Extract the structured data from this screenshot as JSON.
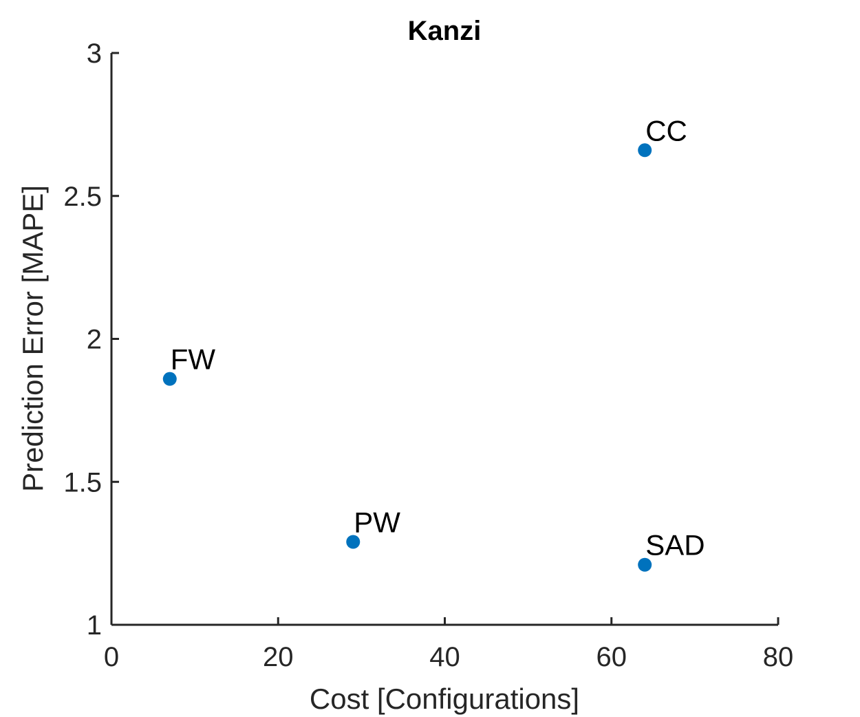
{
  "chart_data": {
    "type": "scatter",
    "title": "Kanzi",
    "xlabel": "Cost [Configurations]",
    "ylabel": "Prediction Error [MAPE]",
    "xlim": [
      0,
      80
    ],
    "ylim": [
      1,
      3
    ],
    "xticks": [
      "0",
      "20",
      "40",
      "60",
      "80"
    ],
    "yticks": [
      "1",
      "1.5",
      "2",
      "2.5",
      "3"
    ],
    "grid": false,
    "marker_color": "#0072BD",
    "points": [
      {
        "label": "CC",
        "x": 64,
        "y": 2.66
      },
      {
        "label": "FW",
        "x": 7,
        "y": 1.86
      },
      {
        "label": "PW",
        "x": 29,
        "y": 1.29
      },
      {
        "label": "SAD",
        "x": 64,
        "y": 1.21
      }
    ]
  }
}
